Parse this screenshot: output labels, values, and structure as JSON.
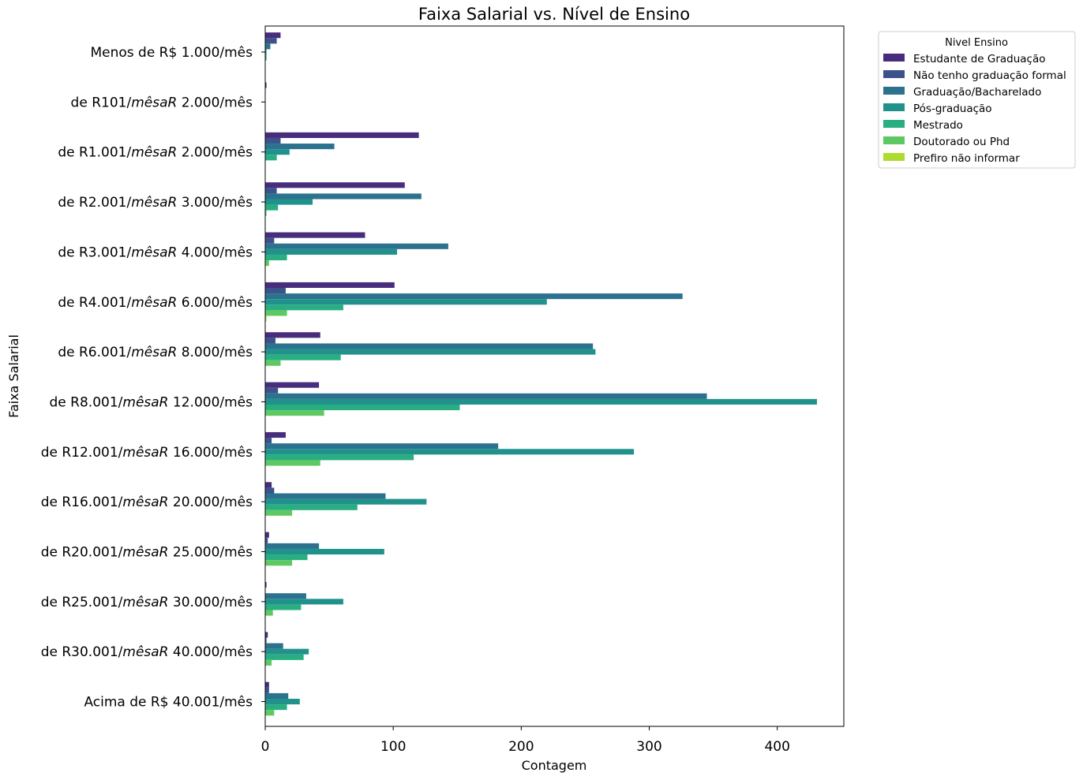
{
  "chart_data": {
    "type": "bar",
    "orientation": "horizontal",
    "title": "Faixa Salarial vs. Nível de Ensino",
    "xlabel": "Contagem",
    "ylabel": "Faixa Salarial",
    "xlim": [
      0,
      452
    ],
    "xticks": [
      0,
      100,
      200,
      300,
      400
    ],
    "grid": false,
    "legend_position": "outside top-right",
    "legend_title": "Nivel Ensino",
    "categories": [
      {
        "pre": "Menos de R$ 1.000/mês",
        "ital": "",
        "post": ""
      },
      {
        "pre": "de R101/",
        "ital": "mêsaR",
        "post": " 2.000/mês"
      },
      {
        "pre": "de R1.001/",
        "ital": "mêsaR",
        "post": " 2.000/mês"
      },
      {
        "pre": "de R2.001/",
        "ital": "mêsaR",
        "post": " 3.000/mês"
      },
      {
        "pre": "de R3.001/",
        "ital": "mêsaR",
        "post": " 4.000/mês"
      },
      {
        "pre": "de R4.001/",
        "ital": "mêsaR",
        "post": " 6.000/mês"
      },
      {
        "pre": "de R6.001/",
        "ital": "mêsaR",
        "post": " 8.000/mês"
      },
      {
        "pre": "de R8.001/",
        "ital": "mêsaR",
        "post": " 12.000/mês"
      },
      {
        "pre": "de R12.001/",
        "ital": "mêsaR",
        "post": " 16.000/mês"
      },
      {
        "pre": "de R16.001/",
        "ital": "mêsaR",
        "post": " 20.000/mês"
      },
      {
        "pre": "de R20.001/",
        "ital": "mêsaR",
        "post": " 25.000/mês"
      },
      {
        "pre": "de R25.001/",
        "ital": "mêsaR",
        "post": " 30.000/mês"
      },
      {
        "pre": "de R30.001/",
        "ital": "mêsaR",
        "post": " 40.000/mês"
      },
      {
        "pre": "Acima de R$ 40.001/mês",
        "ital": "",
        "post": ""
      }
    ],
    "series": [
      {
        "name": "Estudante de Graduação",
        "color": "#472d7b",
        "values": [
          12,
          1,
          120,
          109,
          78,
          101,
          43,
          42,
          16,
          5,
          3,
          1,
          2,
          3
        ]
      },
      {
        "name": "Não tenho graduação formal",
        "color": "#3b528b",
        "values": [
          9,
          0,
          12,
          9,
          7,
          16,
          8,
          10,
          5,
          7,
          2,
          0,
          1,
          3
        ]
      },
      {
        "name": "Graduação/Bacharelado",
        "color": "#2c728e",
        "values": [
          4,
          0,
          54,
          122,
          143,
          326,
          256,
          345,
          182,
          94,
          42,
          32,
          14,
          18
        ]
      },
      {
        "name": "Pós-graduação",
        "color": "#21918c",
        "values": [
          1,
          0,
          19,
          37,
          103,
          220,
          258,
          431,
          288,
          126,
          93,
          61,
          34,
          27
        ]
      },
      {
        "name": "Mestrado",
        "color": "#28ae80",
        "values": [
          1,
          0,
          9,
          10,
          17,
          61,
          59,
          152,
          116,
          72,
          33,
          28,
          30,
          17
        ]
      },
      {
        "name": "Doutorado ou Phd",
        "color": "#5ec962",
        "values": [
          0,
          0,
          0,
          1,
          3,
          17,
          12,
          46,
          43,
          21,
          21,
          6,
          5,
          7
        ]
      },
      {
        "name": "Prefiro não informar",
        "color": "#addc30",
        "values": [
          0,
          0,
          0,
          0,
          0,
          1,
          0,
          0,
          0,
          0,
          0,
          0,
          0,
          0
        ]
      }
    ]
  }
}
